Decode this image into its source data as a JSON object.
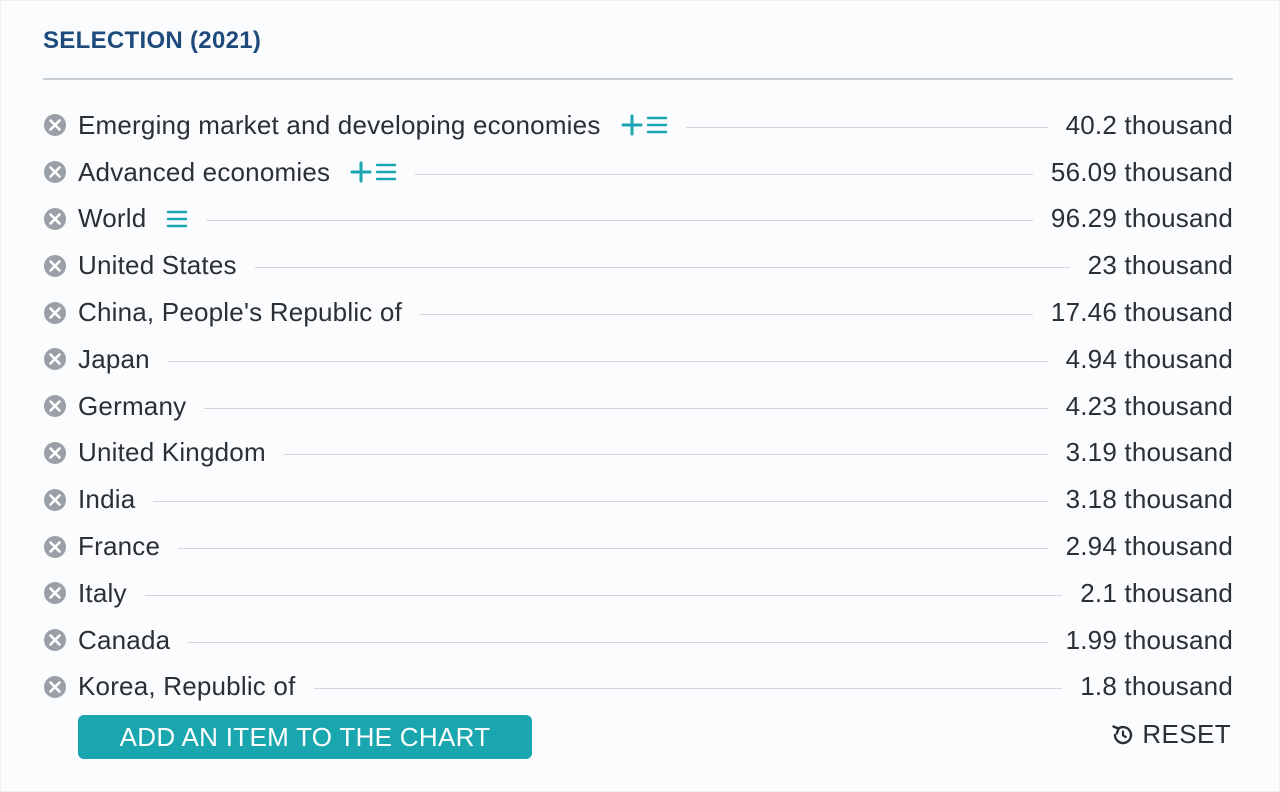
{
  "selection": {
    "title": "SELECTION (2021)"
  },
  "colors": {
    "accent": "#1aa6ae",
    "title": "#1f4a7c",
    "text": "#2b2f36",
    "remove_icon": "#9aa0a8"
  },
  "items": [
    {
      "name": "Emerging market and developing economies",
      "value": "40.2 thousand",
      "icons": [
        "plus-icon",
        "list-icon"
      ]
    },
    {
      "name": "Advanced economies",
      "value": "56.09 thousand",
      "icons": [
        "plus-icon",
        "list-icon"
      ]
    },
    {
      "name": "World",
      "value": "96.29 thousand",
      "icons": [
        "list-icon"
      ]
    },
    {
      "name": "United States",
      "value": "23 thousand",
      "icons": []
    },
    {
      "name": "China, People's Republic of",
      "value": "17.46 thousand",
      "icons": []
    },
    {
      "name": "Japan",
      "value": "4.94 thousand",
      "icons": []
    },
    {
      "name": "Germany",
      "value": "4.23 thousand",
      "icons": []
    },
    {
      "name": "United Kingdom",
      "value": "3.19 thousand",
      "icons": []
    },
    {
      "name": "India",
      "value": "3.18 thousand",
      "icons": []
    },
    {
      "name": "France",
      "value": "2.94 thousand",
      "icons": []
    },
    {
      "name": "Italy",
      "value": "2.1 thousand",
      "icons": []
    },
    {
      "name": "Canada",
      "value": "1.99 thousand",
      "icons": []
    },
    {
      "name": "Korea, Republic of",
      "value": "1.8 thousand",
      "icons": []
    }
  ],
  "footer": {
    "add_label": "ADD AN ITEM TO THE CHART",
    "reset_label": "RESET",
    "reset_icon": "reset-icon"
  }
}
